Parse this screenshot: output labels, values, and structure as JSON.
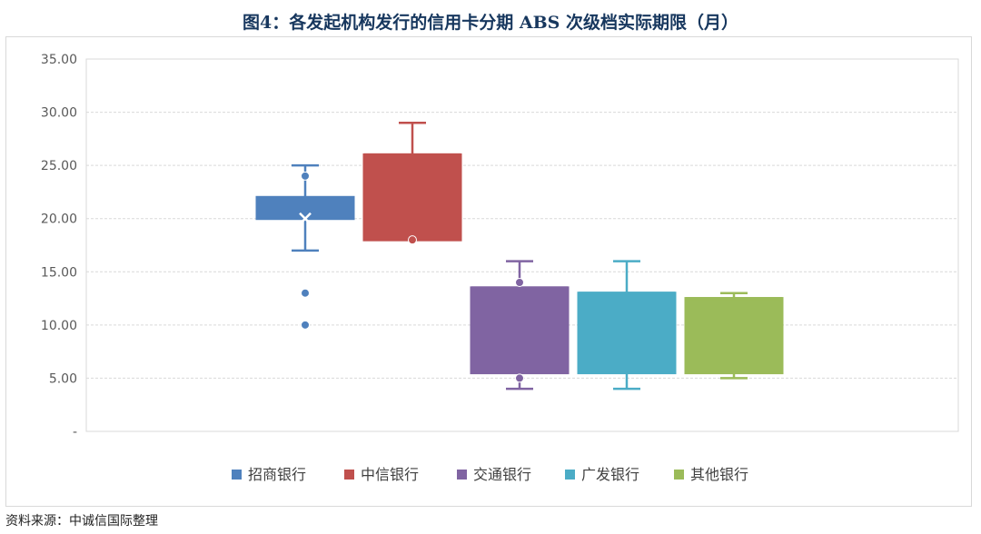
{
  "page": {
    "title": "图4：各发起机构发行的信用卡分期 ABS 次级档实际期限（月）",
    "source": "资料来源：中诚信国际整理"
  },
  "chart_data": {
    "type": "box",
    "title": "图4：各发起机构发行的信用卡分期 ABS 次级档实际期限（月）",
    "xlabel": "",
    "ylabel": "",
    "ylim": [
      0,
      35
    ],
    "yticks": [
      0,
      5,
      10,
      15,
      20,
      25,
      30,
      35
    ],
    "ytick_labels": [
      "-",
      "5.00",
      "10.00",
      "15.00",
      "20.00",
      "25.00",
      "30.00",
      "35.00"
    ],
    "grid": true,
    "legend_position": "bottom",
    "series": [
      {
        "name": "招商银行",
        "color": "#4f81bd",
        "min": 17,
        "q1": 20,
        "median": 21,
        "q3": 22,
        "max": 25,
        "mean": 20,
        "points": [
          24,
          13,
          10
        ]
      },
      {
        "name": "中信银行",
        "color": "#c0504d",
        "min": 18,
        "q1": 18,
        "median": 26,
        "q3": 26,
        "max": 29,
        "mean": null,
        "points": [
          18
        ]
      },
      {
        "name": "交通银行",
        "color": "#8064a2",
        "min": 4,
        "q1": 5.5,
        "median": 13.5,
        "q3": 13.5,
        "max": 16,
        "mean": null,
        "points": [
          14,
          5
        ]
      },
      {
        "name": "广发银行",
        "color": "#4bacc6",
        "min": 4,
        "q1": 5.5,
        "median": 13,
        "q3": 13,
        "max": 16,
        "mean": null,
        "points": []
      },
      {
        "name": "其他银行",
        "color": "#9bbb59",
        "min": 5,
        "q1": 5.5,
        "median": 12.5,
        "q3": 12.5,
        "max": 13,
        "mean": null,
        "points": []
      }
    ]
  }
}
